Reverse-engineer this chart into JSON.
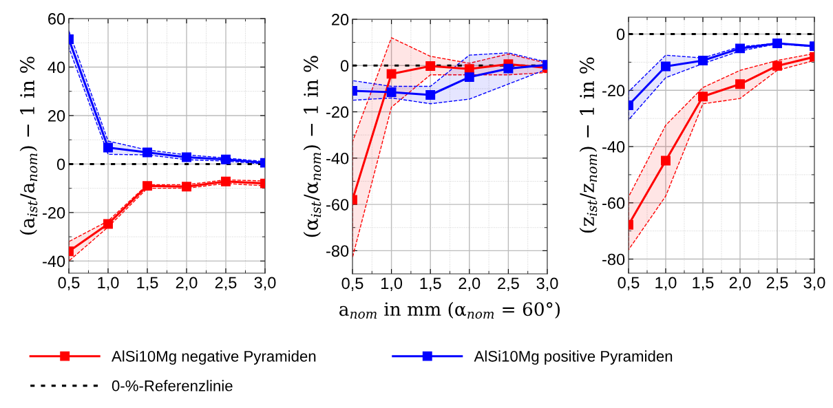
{
  "chart_data": [
    {
      "type": "line",
      "ylabel": "(a$_{ist}$/a$_{nom}$) − 1 in %",
      "x": [
        0.5,
        1.0,
        1.5,
        2.0,
        2.5,
        3.0
      ],
      "xlim": [
        0.5,
        3.0
      ],
      "xticks": [
        {
          "value": 0.5,
          "label": "0,5"
        },
        {
          "value": 1.0,
          "label": "1,0"
        },
        {
          "value": 1.5,
          "label": "1,5"
        },
        {
          "value": 2.0,
          "label": "2,0"
        },
        {
          "value": 2.5,
          "label": "2,5"
        },
        {
          "value": 3.0,
          "label": "3,0"
        }
      ],
      "ylim": [
        -45,
        60
      ],
      "yticks": [
        -40,
        -20,
        0,
        20,
        40,
        60
      ],
      "grid": true,
      "marker": "square",
      "line_style": "solid",
      "legend": "bottom",
      "series": [
        {
          "name": "AlSi10Mg negative Pyramiden",
          "color": "#ff0000",
          "values": [
            -36,
            -24.7,
            -9,
            -9.3,
            -7.2,
            -8
          ],
          "lower": [
            -40,
            -26,
            -10,
            -10,
            -8,
            -9
          ],
          "upper": [
            -32,
            -23.5,
            -8.5,
            -8.5,
            -6.5,
            -7
          ]
        },
        {
          "name": "AlSi10Mg positive Pyramiden",
          "color": "#0000ff",
          "values": [
            51.5,
            6.8,
            4.8,
            2.8,
            1.9,
            0.5
          ],
          "lower": [
            48,
            4,
            3.8,
            1.8,
            1.2,
            0
          ],
          "upper": [
            55,
            9.5,
            5.8,
            3.8,
            2.5,
            1
          ]
        }
      ],
      "ref_lines": [
        {
          "axis": "y",
          "value": 0,
          "label": "0-%-Referenzlinie",
          "color": "#000000",
          "line_style": "dotted"
        }
      ]
    },
    {
      "type": "line",
      "ylabel": "(α$_{ist}$/α$_{nom}$) − 1 in %",
      "xlabel": "a$_{nom}$ in mm (α$_{nom}$ = 60°)",
      "x": [
        0.5,
        1.0,
        1.5,
        2.0,
        2.5,
        3.0
      ],
      "xlim": [
        0.5,
        3.0
      ],
      "xticks": [
        {
          "value": 0.5,
          "label": "0,5"
        },
        {
          "value": 1.0,
          "label": "1,0"
        },
        {
          "value": 1.5,
          "label": "1,5"
        },
        {
          "value": 2.0,
          "label": "2,0"
        },
        {
          "value": 2.5,
          "label": "2,5"
        },
        {
          "value": 3.0,
          "label": "3,0"
        }
      ],
      "ylim": [
        -90,
        20
      ],
      "yticks": [
        -80,
        -60,
        -40,
        -20,
        0,
        20
      ],
      "grid": true,
      "marker": "square",
      "line_style": "solid",
      "series": [
        {
          "color": "#ff0000",
          "values": [
            -58,
            -3.6,
            -0.2,
            -1.5,
            0.6,
            -1
          ],
          "lower": [
            -83,
            -18,
            -4,
            -4,
            -4,
            -3
          ],
          "upper": [
            -33,
            12,
            4,
            1,
            5,
            1
          ]
        },
        {
          "color": "#0000ff",
          "values": [
            -10.9,
            -11.5,
            -12.7,
            -5,
            -1.3,
            0.3
          ],
          "lower": [
            -15,
            -14,
            -16.5,
            -14.5,
            -8,
            -1.5
          ],
          "upper": [
            -6.5,
            -9,
            -9,
            4.5,
            5.5,
            1.5
          ]
        }
      ],
      "ref_lines": [
        {
          "axis": "y",
          "value": 0,
          "color": "#000000",
          "line_style": "dotted"
        }
      ]
    },
    {
      "type": "line",
      "ylabel": "(z$_{ist}$/z$_{nom}$) − 1 in %",
      "x": [
        0.5,
        1.0,
        1.5,
        2.0,
        2.5,
        3.0
      ],
      "xlim": [
        0.5,
        3.0
      ],
      "xticks": [
        {
          "value": 0.5,
          "label": "0,5"
        },
        {
          "value": 1.0,
          "label": "1,0"
        },
        {
          "value": 1.5,
          "label": "1,5"
        },
        {
          "value": 2.0,
          "label": "2,0"
        },
        {
          "value": 2.5,
          "label": "2,5"
        },
        {
          "value": 3.0,
          "label": "3,0"
        }
      ],
      "ylim": [
        -85,
        6
      ],
      "yticks": [
        -80,
        -60,
        -40,
        -20,
        0
      ],
      "grid": true,
      "marker": "square",
      "line_style": "solid",
      "series": [
        {
          "color": "#ff0000",
          "values": [
            -67.8,
            -45,
            -22.2,
            -17.8,
            -11.3,
            -8.1
          ],
          "lower": [
            -76.7,
            -57.6,
            -24.8,
            -22.9,
            -12.9,
            -9.4
          ],
          "upper": [
            -57.9,
            -32.4,
            -19,
            -12.9,
            -9.4,
            -6.9
          ]
        },
        {
          "color": "#0000ff",
          "values": [
            -25.3,
            -11.5,
            -9.4,
            -5.1,
            -3.3,
            -4.3
          ],
          "lower": [
            -30.5,
            -15.5,
            -10.5,
            -6,
            -3.5,
            -4.5
          ],
          "upper": [
            -20.5,
            -7.5,
            -8.5,
            -4.5,
            -3.2,
            -4.3
          ]
        }
      ],
      "ref_lines": [
        {
          "axis": "y",
          "value": 0,
          "color": "#000000",
          "line_style": "dotted"
        }
      ]
    }
  ]
}
